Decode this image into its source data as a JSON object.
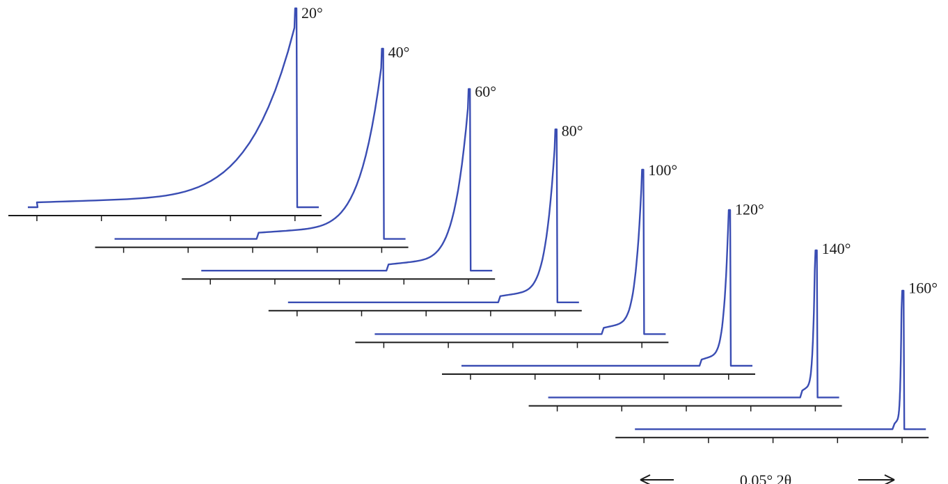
{
  "chart_data": {
    "type": "line",
    "series": [
      {
        "name": "20°",
        "angle": 20
      },
      {
        "name": "40°",
        "angle": 40
      },
      {
        "name": "60°",
        "angle": 60
      },
      {
        "name": "80°",
        "angle": 80
      },
      {
        "name": "100°",
        "angle": 100
      },
      {
        "name": "120°",
        "angle": 120
      },
      {
        "name": "140°",
        "angle": 140
      },
      {
        "name": "160°",
        "angle": 160
      }
    ],
    "scale_bar_label": "0.05° 2θ",
    "grid": false
  },
  "colors": {
    "curve": "#3a4db3",
    "axis": "#1a1a1a"
  }
}
